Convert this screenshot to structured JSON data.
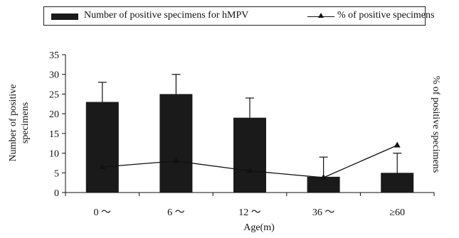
{
  "chart_data": {
    "type": "bar",
    "categories": [
      "0 ～",
      "6 ～",
      "12 ～",
      "36 ～",
      "≥60"
    ],
    "series": [
      {
        "name": "Number of positive specimens for hMPV",
        "kind": "bar",
        "values": [
          23,
          25,
          19,
          4,
          5
        ],
        "error": [
          5,
          5,
          5,
          5,
          5
        ]
      },
      {
        "name": "% of positive specimens",
        "kind": "line",
        "values": [
          6.5,
          8,
          5.5,
          3.8,
          12
        ]
      }
    ],
    "ylim": [
      0,
      35
    ],
    "yticks": [
      0,
      5,
      10,
      15,
      20,
      25,
      30,
      35
    ],
    "ylabel": "Number of positive specimens",
    "ylabel_right": "% of positive specimens",
    "xlabel": "Age(m)",
    "legend_position": "top",
    "colors": {
      "bar": "#1a1a1a",
      "line": "#111111"
    }
  }
}
